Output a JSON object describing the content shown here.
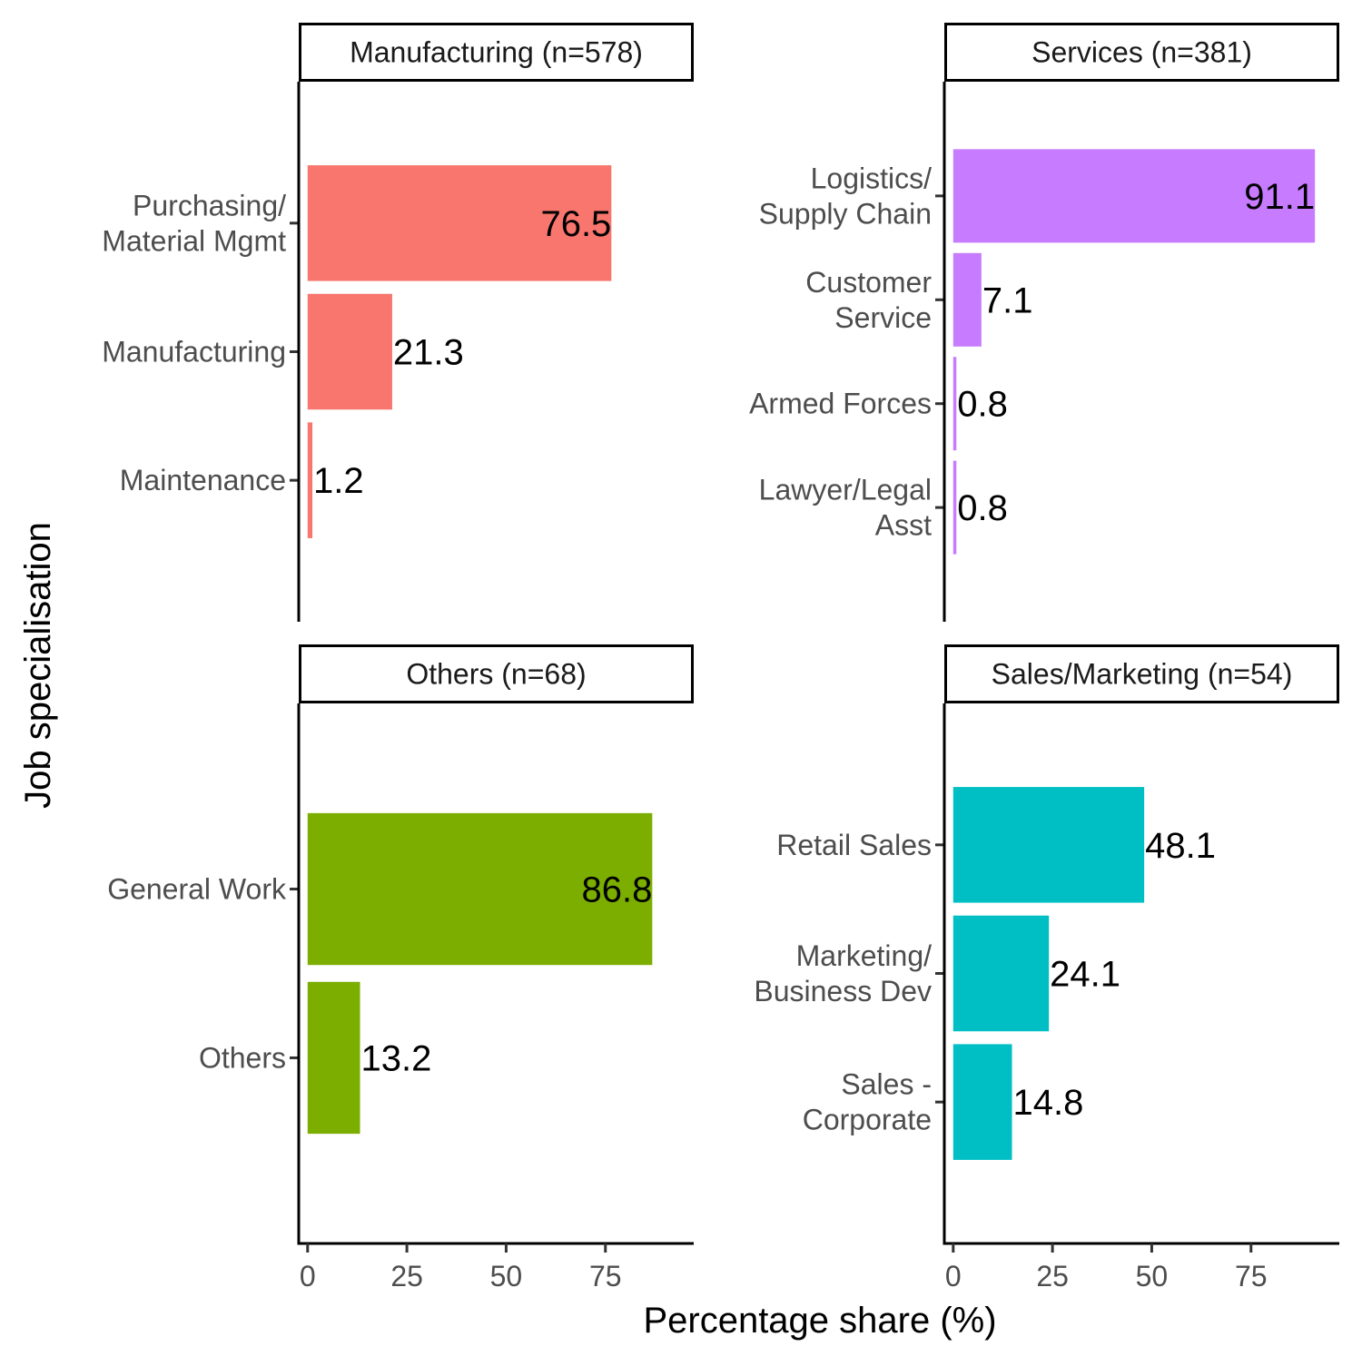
{
  "chart_data": {
    "type": "bar",
    "orientation": "horizontal",
    "xlabel": "Percentage share (%)",
    "ylabel": "Job specialisation",
    "xlim": [
      0,
      95
    ],
    "x_ticks": [
      "0",
      "25",
      "50",
      "75"
    ],
    "grid": false,
    "panels": [
      {
        "title": "Manufacturing (n=578)",
        "color": "#F8766D",
        "categories": [
          [
            "Purchasing/",
            "Material Mgmt"
          ],
          [
            "Manufacturing"
          ],
          [
            "Maintenance"
          ]
        ],
        "values": [
          76.5,
          21.3,
          1.2
        ],
        "value_labels": [
          "76.5",
          "21.3",
          "1.2"
        ]
      },
      {
        "title": "Services (n=381)",
        "color": "#C77CFF",
        "categories": [
          [
            "Logistics/",
            "Supply Chain"
          ],
          [
            "Customer",
            "Service"
          ],
          [
            "Armed Forces"
          ],
          [
            "Lawyer/Legal",
            "Asst"
          ]
        ],
        "values": [
          91.1,
          7.1,
          0.8,
          0.8
        ],
        "value_labels": [
          "91.1",
          "7.1",
          "0.8",
          "0.8"
        ]
      },
      {
        "title": "Others (n=68)",
        "color": "#7CAE00",
        "categories": [
          [
            "General Work"
          ],
          [
            "Others"
          ]
        ],
        "values": [
          86.8,
          13.2
        ],
        "value_labels": [
          "86.8",
          "13.2"
        ]
      },
      {
        "title": "Sales/Marketing (n=54)",
        "color": "#00BFC4",
        "categories": [
          [
            "Retail Sales"
          ],
          [
            "Marketing/",
            "Business Dev"
          ],
          [
            "Sales -",
            "Corporate"
          ]
        ],
        "values": [
          48.1,
          24.1,
          14.8
        ],
        "value_labels": [
          "48.1",
          "24.1",
          "14.8"
        ]
      }
    ]
  }
}
